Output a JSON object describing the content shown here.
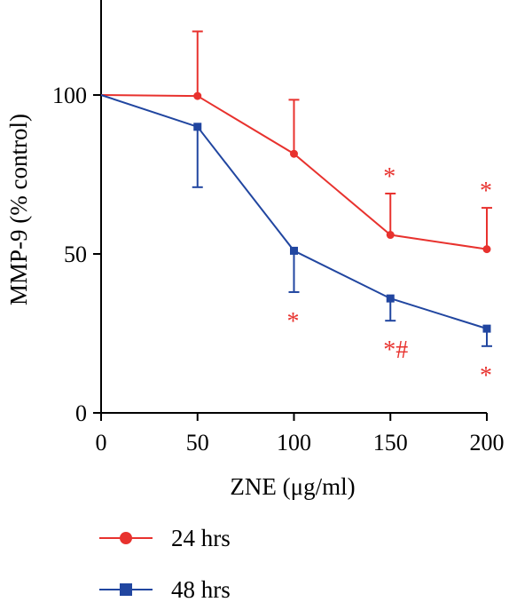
{
  "chart_data": {
    "type": "line",
    "xlabel": "ZNE (μg/ml)",
    "ylabel": "MMP-9 (% control)",
    "x": [
      0,
      50,
      100,
      150,
      200
    ],
    "xticks": [
      0,
      50,
      100,
      150,
      200
    ],
    "yticks": [
      0,
      50,
      100
    ],
    "xlim": [
      0,
      200
    ],
    "ylim": [
      0,
      125
    ],
    "grid": false,
    "legend_position": "bottom-left",
    "series": [
      {
        "name": "24 hrs",
        "color": "#e8322e",
        "marker": "circle",
        "values": [
          100,
          99.7,
          81.5,
          56,
          51.5
        ],
        "error_upper": [
          0,
          20.3,
          17,
          13,
          13
        ],
        "error_lower": [
          0,
          0,
          0,
          0,
          0
        ]
      },
      {
        "name": "48 hrs",
        "color": "#2146a0",
        "marker": "square",
        "values": [
          100,
          90,
          51,
          36,
          26.5
        ],
        "error_upper": [
          0,
          0,
          0,
          0,
          0
        ],
        "error_lower": [
          0,
          19,
          13,
          7,
          5.5
        ]
      }
    ],
    "annotations": [
      {
        "text": "*",
        "x": 150,
        "series": "24 hrs",
        "position": "above",
        "color": "#e8322e"
      },
      {
        "text": "*",
        "x": 200,
        "series": "24 hrs",
        "position": "above",
        "color": "#e8322e"
      },
      {
        "text": "*",
        "x": 100,
        "series": "48 hrs",
        "position": "below",
        "color": "#e8322e"
      },
      {
        "text": "*#",
        "x": 150,
        "series": "48 hrs",
        "position": "below",
        "color": "#e8322e"
      },
      {
        "text": "*",
        "x": 200,
        "series": "48 hrs",
        "position": "below",
        "color": "#e8322e"
      }
    ]
  }
}
